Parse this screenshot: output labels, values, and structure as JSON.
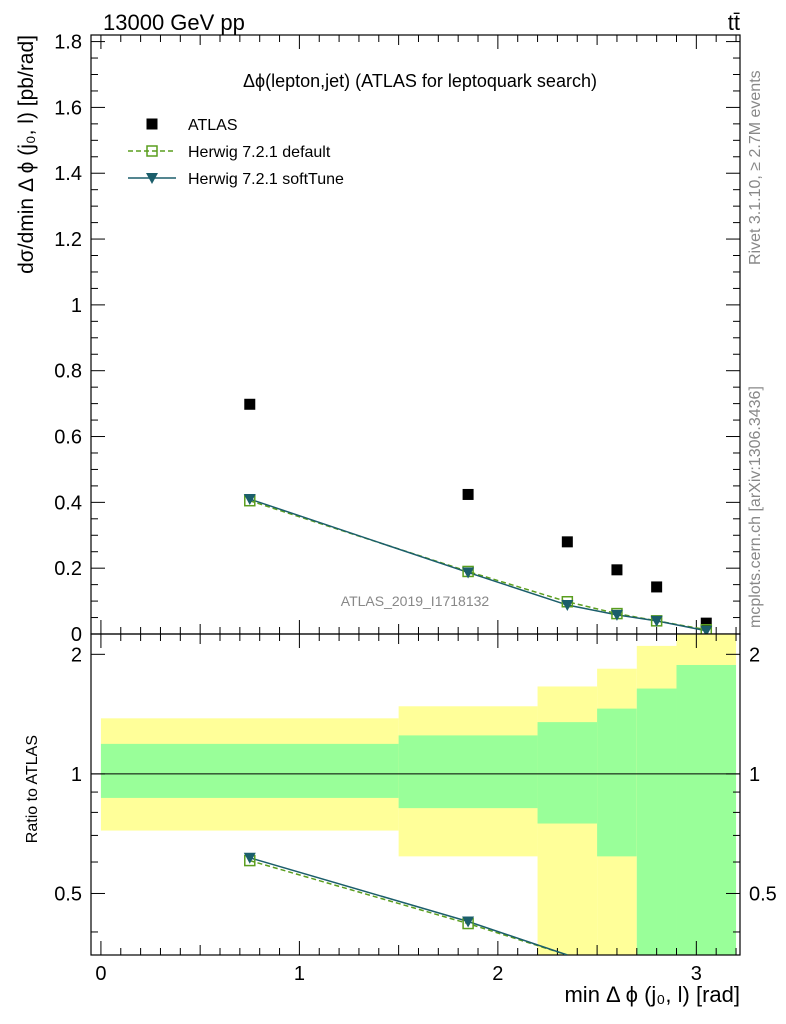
{
  "header": {
    "left": "13000 GeV pp",
    "right": "tt̄"
  },
  "side_labels": {
    "rivet": "Rivet 3.1.10, ≥ 2.7M events",
    "mcplots": "mcplots.cern.ch [arXiv:1306.3436]"
  },
  "watermark": "ATLAS_2019_I1718132",
  "chart_data": [
    {
      "type": "scatter",
      "title": "Δϕ(lepton,jet) (ATLAS for leptoquark search)",
      "ylabel": "dσ/dmin Δ ϕ (j₀, l) [pb/rad]",
      "xlabel": "",
      "xlim": [
        -0.05,
        3.22
      ],
      "ylim": [
        0,
        1.82
      ],
      "x_ticks": [],
      "y_ticks": [
        "0",
        "0.2",
        "0.4",
        "0.6",
        "0.8",
        "1",
        "1.2",
        "1.4",
        "1.6",
        "1.8"
      ],
      "legend_position": "top-left",
      "bin_edges": [
        0,
        1.5,
        2.2,
        2.5,
        2.7,
        2.9,
        3.2
      ],
      "series": [
        {
          "name": "ATLAS",
          "marker": "filled-square",
          "color": "#000000",
          "x": [
            0.75,
            1.85,
            2.35,
            2.6,
            2.8,
            3.05
          ],
          "y": [
            0.698,
            0.424,
            0.28,
            0.195,
            0.143,
            0.033
          ]
        },
        {
          "name": "Herwig 7.2.1 default",
          "marker": "open-square",
          "line": "dashed",
          "color": "#5a9e1e",
          "x": [
            0.75,
            1.85,
            2.35,
            2.6,
            2.8,
            3.05
          ],
          "y": [
            0.405,
            0.19,
            0.098,
            0.062,
            0.04,
            0.013
          ]
        },
        {
          "name": "Herwig 7.2.1 softTune",
          "marker": "filled-triangle-down",
          "line": "solid",
          "color": "#1b5e6b",
          "x": [
            0.75,
            1.85,
            2.35,
            2.6,
            2.8,
            3.05
          ],
          "y": [
            0.41,
            0.187,
            0.088,
            0.058,
            0.04,
            0.01
          ]
        }
      ]
    },
    {
      "type": "line",
      "title": "",
      "ylabel": "Ratio to ATLAS",
      "xlabel": "min Δ ϕ (j₀, l) [rad]",
      "xlim": [
        -0.05,
        3.22
      ],
      "ylim": [
        0.35,
        2.25
      ],
      "x_ticks": [
        "0",
        "1",
        "2",
        "3"
      ],
      "y_ticks": [
        "0.5",
        "1",
        "2"
      ],
      "log_y": true,
      "bands": {
        "bin_edges": [
          0,
          1.5,
          2.2,
          2.5,
          2.7,
          2.9,
          3.2
        ],
        "yellow_low": [
          0.72,
          0.62,
          0.35,
          0.35,
          0.35,
          0.35
        ],
        "yellow_high": [
          1.38,
          1.48,
          1.66,
          1.84,
          2.1,
          2.4
        ],
        "green_low": [
          0.87,
          0.82,
          0.75,
          0.62,
          0.35,
          0.35
        ],
        "green_high": [
          1.19,
          1.25,
          1.35,
          1.46,
          1.64,
          1.88
        ],
        "yellow_color": "#ffff99",
        "green_color": "#99ff99"
      },
      "series": [
        {
          "name": "Herwig 7.2.1 default",
          "marker": "open-square",
          "line": "dashed",
          "color": "#5a9e1e",
          "x": [
            0.75,
            1.85,
            2.35
          ],
          "y": [
            0.605,
            0.42,
            0.35
          ]
        },
        {
          "name": "Herwig 7.2.1 softTune",
          "marker": "filled-triangle-down",
          "line": "solid",
          "color": "#1b5e6b",
          "x": [
            0.75,
            1.85,
            2.35
          ],
          "y": [
            0.615,
            0.425,
            0.35
          ]
        }
      ]
    }
  ]
}
